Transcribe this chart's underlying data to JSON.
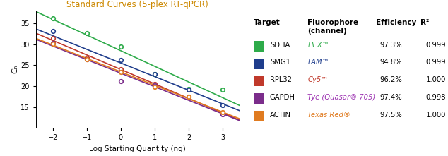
{
  "title": "Standard Curves (5-plex RT-qPCR)",
  "title_color": "#CC8800",
  "xlabel": "Log Starting Quantity (ng)",
  "ylabel": "Cₙ",
  "xlim": [
    -2.5,
    3.5
  ],
  "ylim": [
    10,
    38
  ],
  "xticks": [
    -2,
    -1,
    0,
    1,
    2,
    3
  ],
  "yticks": [
    15,
    20,
    25,
    30,
    35
  ],
  "x_data": [
    -2,
    -1,
    0,
    1,
    2,
    3
  ],
  "lines": [
    {
      "name": "SDHA",
      "color": "#2eab4a",
      "y": [
        36.2,
        32.6,
        29.4,
        22.9,
        19.4,
        19.2
      ]
    },
    {
      "name": "SMG1",
      "color": "#1f3d8c",
      "y": [
        33.2,
        26.6,
        26.2,
        22.8,
        19.2,
        15.5
      ]
    },
    {
      "name": "RPL32",
      "color": "#c0392b",
      "y": [
        31.5,
        26.7,
        24.0,
        20.5,
        17.4,
        13.5
      ]
    },
    {
      "name": "GAPDH",
      "color": "#7b2d8b",
      "y": [
        30.3,
        26.5,
        21.2,
        20.2,
        17.5,
        13.2
      ]
    },
    {
      "name": "ACTIN",
      "color": "#e07b20",
      "y": [
        30.1,
        26.5,
        23.3,
        19.8,
        17.4,
        13.8
      ]
    }
  ],
  "table": {
    "targets": [
      "SDHA",
      "SMG1",
      "RPL32",
      "GAPDH",
      "ACTIN"
    ],
    "colors": [
      "#2eab4a",
      "#1f3d8c",
      "#c0392b",
      "#7b2d8b",
      "#e07b20"
    ],
    "fluorophores": [
      "HEX™",
      "FAM™",
      "Cy5™",
      "Tye (Quasar® 705)",
      "Texas Red®"
    ],
    "fluor_colors": [
      "#2eab4a",
      "#1f3d8c",
      "#c0392b",
      "#9b30b0",
      "#e07b20"
    ],
    "efficiencies": [
      "97.3%",
      "94.8%",
      "96.2%",
      "97.4%",
      "97.5%"
    ],
    "r2": [
      "0.999",
      "0.999",
      "1.000",
      "0.998",
      "1.000"
    ]
  }
}
